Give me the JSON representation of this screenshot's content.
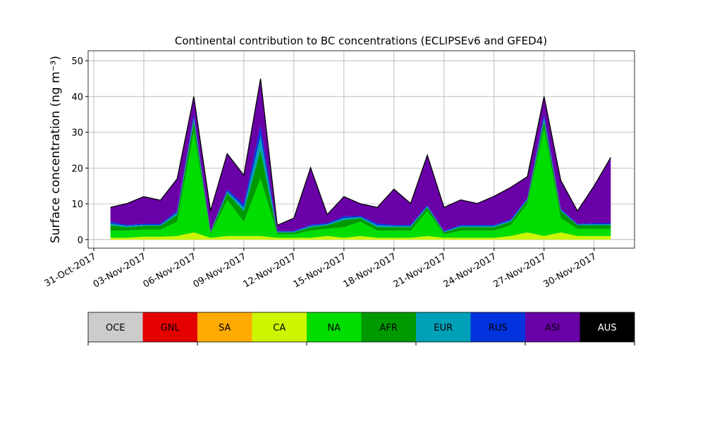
{
  "chart_data": {
    "type": "stackedarea",
    "title": "Continental contribution to BC concentrations (ECLIPSEv6 and GFED4)",
    "y_label": "Surface concentration (ng m⁻³)",
    "x": [
      "2017-11-01",
      "2017-11-02",
      "2017-11-03",
      "2017-11-04",
      "2017-11-05",
      "2017-11-06",
      "2017-11-07",
      "2017-11-08",
      "2017-11-09",
      "2017-11-10",
      "2017-11-11",
      "2017-11-12",
      "2017-11-13",
      "2017-11-14",
      "2017-11-15",
      "2017-11-16",
      "2017-11-17",
      "2017-11-18",
      "2017-11-19",
      "2017-11-20",
      "2017-11-21",
      "2017-11-22",
      "2017-11-23",
      "2017-11-24",
      "2017-11-25",
      "2017-11-26",
      "2017-11-27",
      "2017-11-28",
      "2017-11-29",
      "2017-11-30",
      "2017-12-01"
    ],
    "series": [
      {
        "name": "OCE",
        "color": "#cccccc",
        "values": [
          0,
          0,
          0,
          0,
          0,
          0,
          0,
          0,
          0,
          0,
          0,
          0,
          0,
          0,
          0,
          0,
          0,
          0,
          0,
          0,
          0,
          0,
          0,
          0,
          0,
          0,
          0,
          0,
          0,
          0,
          0
        ]
      },
      {
        "name": "GNL",
        "color": "#e50000",
        "values": [
          0,
          0,
          0,
          0,
          0,
          0,
          0,
          0,
          0,
          0,
          0,
          0,
          0,
          0,
          0,
          0,
          0,
          0,
          0,
          0,
          0,
          0,
          0,
          0,
          0,
          0,
          0,
          0,
          0,
          0,
          0
        ]
      },
      {
        "name": "SA",
        "color": "#ffaa00",
        "values": [
          0,
          0,
          0,
          0,
          0,
          0,
          0,
          0,
          0,
          0,
          0,
          0,
          0,
          0,
          0,
          0,
          0,
          0,
          0,
          0,
          0,
          0,
          0,
          0,
          0,
          0,
          0,
          0,
          0,
          0,
          0
        ]
      },
      {
        "name": "CA",
        "color": "#ccf500",
        "values": [
          0.5,
          0.5,
          0.8,
          0.8,
          1,
          2,
          0.5,
          1,
          1,
          1,
          0.5,
          0.5,
          0.5,
          1,
          0.5,
          1,
          0.5,
          0.5,
          0.5,
          1,
          0.5,
          0.5,
          0.5,
          0.5,
          1,
          2,
          1,
          2,
          1,
          1,
          1
        ]
      },
      {
        "name": "NA",
        "color": "#00dd00",
        "values": [
          2,
          2,
          2,
          2,
          4,
          28,
          1,
          10,
          4,
          16,
          1,
          1,
          2,
          2,
          3,
          4,
          2,
          2,
          2,
          7,
          1,
          2,
          2,
          2,
          3,
          8,
          30,
          4,
          2,
          2,
          2
        ]
      },
      {
        "name": "AFR",
        "color": "#009a00",
        "values": [
          1.5,
          1,
          1,
          1,
          2,
          3,
          0.5,
          2,
          3,
          8,
          0.5,
          0.5,
          1,
          1,
          2,
          1,
          1,
          1,
          1,
          1,
          0.5,
          1,
          1,
          1,
          1,
          1,
          2,
          2,
          1,
          1,
          1
        ]
      },
      {
        "name": "EUR",
        "color": "#00a0b8",
        "values": [
          0.5,
          0.3,
          0.3,
          0.3,
          0.5,
          1,
          0.2,
          0.5,
          1,
          4,
          0.2,
          0.2,
          0.3,
          0.3,
          0.5,
          0.3,
          0.5,
          0.3,
          0.3,
          0.3,
          0.2,
          0.3,
          0.3,
          0.3,
          0.3,
          0.3,
          1,
          0.3,
          0.2,
          0.3,
          0.3
        ]
      },
      {
        "name": "RUS",
        "color": "#0033dd",
        "values": [
          0.5,
          0.3,
          0.3,
          0.3,
          0.5,
          1,
          0.2,
          0.5,
          1,
          3,
          0.2,
          0.2,
          0.3,
          0.3,
          0.5,
          0.3,
          0.5,
          0.3,
          0.3,
          0.3,
          0.2,
          0.3,
          0.3,
          0.3,
          0.3,
          0.3,
          1,
          0.3,
          0.2,
          0.3,
          0.3
        ]
      },
      {
        "name": "ASI",
        "color": "#6a00a8",
        "values": [
          4,
          6,
          7.6,
          6.6,
          9,
          5,
          5.6,
          10,
          8,
          13,
          1.6,
          3.6,
          16,
          2.4,
          5.5,
          3.4,
          4.5,
          10,
          6,
          14,
          6.6,
          7,
          6,
          8,
          9,
          6,
          5,
          8,
          3.6,
          10.4,
          18.4
        ]
      },
      {
        "name": "AUS",
        "color": "#000000",
        "values": [
          0,
          0,
          0,
          0,
          0,
          0,
          0,
          0,
          0,
          0,
          0,
          0,
          0,
          0,
          0,
          0,
          0,
          0,
          0,
          0,
          0,
          0,
          0,
          0,
          0,
          0,
          0,
          0,
          0,
          0,
          0
        ]
      }
    ],
    "xlim": [
      "2017-10-31",
      "2017-12-02"
    ],
    "xticks": [
      {
        "value": "2017-10-31",
        "label": "31-Oct-2017"
      },
      {
        "value": "2017-11-03",
        "label": "03-Nov-2017"
      },
      {
        "value": "2017-11-06",
        "label": "06-Nov-2017"
      },
      {
        "value": "2017-11-09",
        "label": "09-Nov-2017"
      },
      {
        "value": "2017-11-12",
        "label": "12-Nov-2017"
      },
      {
        "value": "2017-11-15",
        "label": "15-Nov-2017"
      },
      {
        "value": "2017-11-18",
        "label": "18-Nov-2017"
      },
      {
        "value": "2017-11-21",
        "label": "21-Nov-2017"
      },
      {
        "value": "2017-11-24",
        "label": "24-Nov-2017"
      },
      {
        "value": "2017-11-27",
        "label": "27-Nov-2017"
      },
      {
        "value": "2017-11-30",
        "label": "30-Nov-2017"
      }
    ],
    "ylim": [
      -2.4,
      52.8
    ],
    "yticks": [
      0,
      10,
      20,
      30,
      40,
      50
    ],
    "grid": true
  }
}
